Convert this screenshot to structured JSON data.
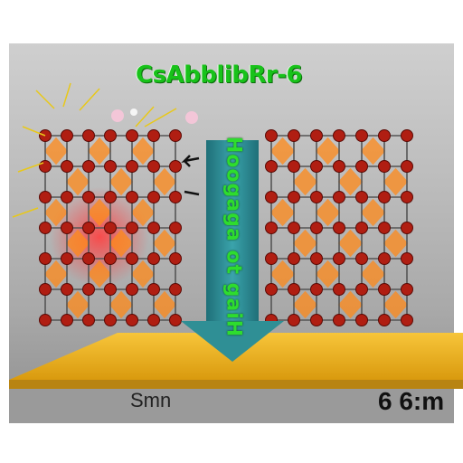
{
  "title": "CsAbblibRr-6",
  "arrow_label": "Hoogaga ot gaiH",
  "substrate_label": "Smn",
  "scale_label": "6 6:m",
  "colors": {
    "atom": "#b01e12",
    "octahedron": "#ff8a1a",
    "substrate": "#f2b51c",
    "arrow": "#2f8f95",
    "title": "#18c21a",
    "background": "#bdbdbd"
  },
  "lattices": [
    {
      "name": "left-lattice",
      "state": "excited"
    },
    {
      "name": "right-lattice",
      "state": "ordered"
    }
  ]
}
